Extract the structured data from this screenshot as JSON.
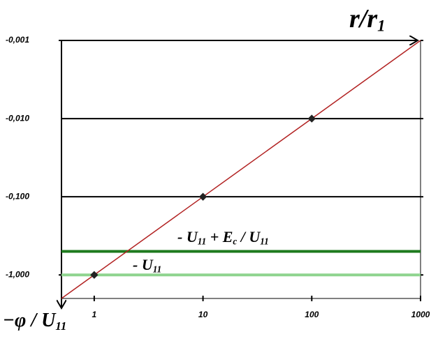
{
  "chart_data": {
    "type": "line",
    "yscale": "log",
    "xscale": "log",
    "x_label": [
      "r/r",
      "1"
    ],
    "y_label": [
      "−φ / U",
      "11"
    ],
    "xlim": [
      0.5,
      1000
    ],
    "ylim": [
      -2,
      -0.001
    ],
    "xticks": [
      1,
      10,
      100,
      1000
    ],
    "yticks": [
      {
        "value": -0.001,
        "label": "-0,001"
      },
      {
        "value": -0.01,
        "label": "-0,010"
      },
      {
        "value": -0.1,
        "label": "-0,100"
      },
      {
        "value": -1,
        "label": "-1,000"
      }
    ],
    "x": [
      0.5,
      1,
      10,
      100,
      1000
    ],
    "series": [
      {
        "color": "#b22222",
        "values": [
          -2,
          -1,
          -0.1,
          -0.01,
          -0.001
        ]
      }
    ],
    "hlines": [
      {
        "value": -0.5,
        "color": "#1e7a1e",
        "label": [
          "- U",
          "11",
          " + E",
          "c",
          " / U",
          "11"
        ]
      },
      {
        "value": -1,
        "color": "#8fd48f",
        "label": [
          "- U",
          "11"
        ]
      }
    ],
    "grid": true
  }
}
